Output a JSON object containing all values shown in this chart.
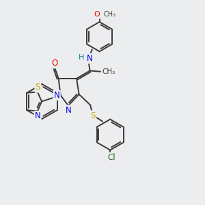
{
  "bg_color": "#ecedef",
  "bond_color": "#3a3a3a",
  "bond_width": 1.4,
  "atom_colors": {
    "N": "#0000ee",
    "O": "#ee0000",
    "S": "#ccaa00",
    "Cl": "#226622",
    "H": "#008888",
    "C": "#3a3a3a"
  },
  "font_size": 8.5
}
